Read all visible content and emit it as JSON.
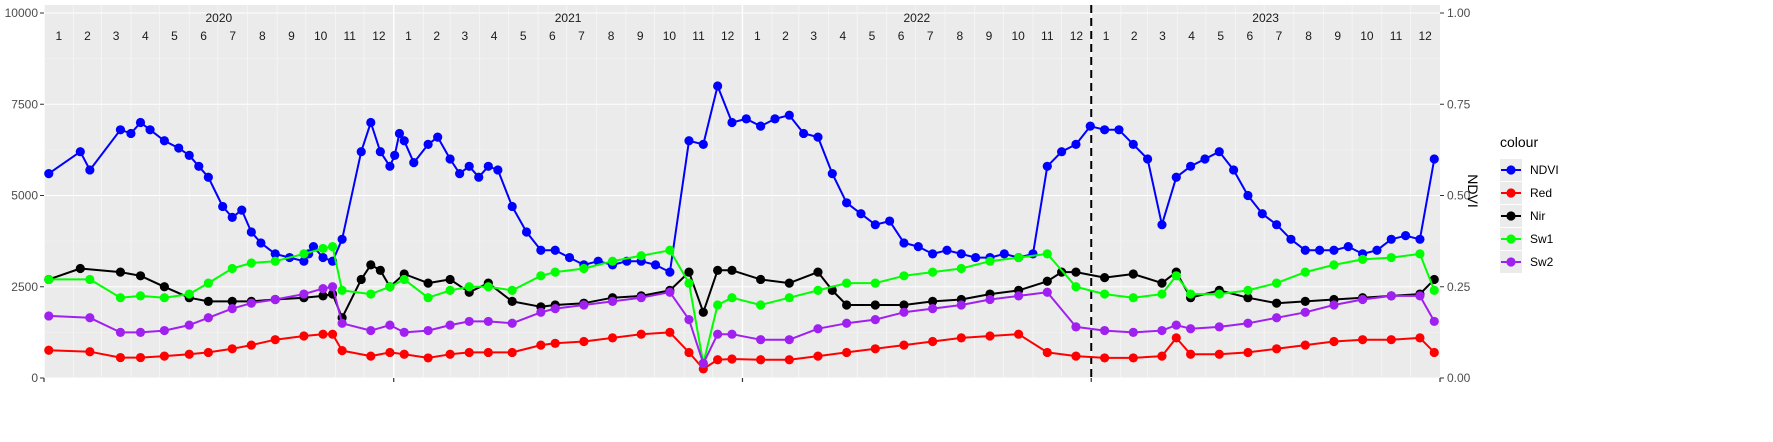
{
  "chart_data": {
    "type": "line",
    "title": "",
    "xlabel": "",
    "ylabel_left": "",
    "ylabel_right": "NDVI",
    "ylim_left": [
      0,
      10000
    ],
    "ylim_right": [
      0,
      1
    ],
    "yticks_left": [
      "0",
      "2500",
      "5000",
      "7500",
      "10000"
    ],
    "yticks_right": [
      "0.00",
      "0.25",
      "0.50",
      "0.75",
      "1.00"
    ],
    "years": [
      "2020",
      "2021",
      "2022",
      "2023"
    ],
    "months": [
      "1",
      "2",
      "3",
      "4",
      "5",
      "6",
      "7",
      "8",
      "9",
      "10",
      "11",
      "12"
    ],
    "x_range": [
      "2020-01-01",
      "2023-12-31"
    ],
    "vline_date": "2023-01-01",
    "grid": true,
    "legend_title": "colour",
    "legend_position": "right",
    "series": [
      {
        "name": "NDVI",
        "axis": "right",
        "color": "#0000ff",
        "dates": [
          "2020-01-06",
          "2020-02-08",
          "2020-02-18",
          "2020-03-21",
          "2020-04-01",
          "2020-04-11",
          "2020-04-21",
          "2020-05-06",
          "2020-05-21",
          "2020-06-01",
          "2020-06-11",
          "2020-06-21",
          "2020-07-06",
          "2020-07-16",
          "2020-07-26",
          "2020-08-05",
          "2020-08-15",
          "2020-08-30",
          "2020-09-14",
          "2020-09-29",
          "2020-10-04",
          "2020-10-09",
          "2020-10-19",
          "2020-10-29",
          "2020-11-08",
          "2020-11-28",
          "2020-12-08",
          "2020-12-18",
          "2020-12-28",
          "2021-01-02",
          "2021-01-07",
          "2021-01-12",
          "2021-01-22",
          "2021-02-06",
          "2021-02-16",
          "2021-03-01",
          "2021-03-11",
          "2021-03-21",
          "2021-03-31",
          "2021-04-10",
          "2021-04-20",
          "2021-05-05",
          "2021-05-20",
          "2021-06-04",
          "2021-06-19",
          "2021-07-04",
          "2021-07-19",
          "2021-08-03",
          "2021-08-18",
          "2021-09-02",
          "2021-09-17",
          "2021-10-02",
          "2021-10-17",
          "2021-11-06",
          "2021-11-21",
          "2021-12-06",
          "2021-12-21",
          "2022-01-05",
          "2022-01-20",
          "2022-02-04",
          "2022-02-19",
          "2022-03-06",
          "2022-03-21",
          "2022-04-05",
          "2022-04-20",
          "2022-05-05",
          "2022-05-20",
          "2022-06-04",
          "2022-06-19",
          "2022-07-04",
          "2022-07-19",
          "2022-08-03",
          "2022-08-18",
          "2022-09-02",
          "2022-09-17",
          "2022-10-02",
          "2022-10-17",
          "2022-11-01",
          "2022-11-16",
          "2022-12-01",
          "2022-12-16",
          "2022-12-31",
          "2023-01-15",
          "2023-01-30",
          "2023-02-14",
          "2023-03-01",
          "2023-03-16",
          "2023-03-31",
          "2023-04-15",
          "2023-04-30",
          "2023-05-15",
          "2023-05-30",
          "2023-06-14",
          "2023-06-29",
          "2023-07-14",
          "2023-07-29",
          "2023-08-13",
          "2023-08-28",
          "2023-09-12",
          "2023-09-27",
          "2023-10-12",
          "2023-10-27",
          "2023-11-11",
          "2023-11-26",
          "2023-12-11",
          "2023-12-26"
        ],
        "values": [
          0.56,
          0.62,
          0.57,
          0.68,
          0.67,
          0.7,
          0.68,
          0.65,
          0.63,
          0.61,
          0.58,
          0.55,
          0.47,
          0.44,
          0.46,
          0.4,
          0.37,
          0.34,
          0.33,
          0.32,
          0.34,
          0.36,
          0.33,
          0.32,
          0.38,
          0.62,
          0.7,
          0.62,
          0.58,
          0.61,
          0.67,
          0.65,
          0.59,
          0.64,
          0.66,
          0.6,
          0.56,
          0.58,
          0.55,
          0.58,
          0.57,
          0.47,
          0.4,
          0.35,
          0.35,
          0.33,
          0.31,
          0.32,
          0.31,
          0.32,
          0.32,
          0.31,
          0.29,
          0.65,
          0.64,
          0.8,
          0.7,
          0.71,
          0.69,
          0.71,
          0.72,
          0.67,
          0.66,
          0.56,
          0.48,
          0.45,
          0.42,
          0.43,
          0.37,
          0.36,
          0.34,
          0.35,
          0.34,
          0.33,
          0.33,
          0.34,
          0.33,
          0.34,
          0.58,
          0.62,
          0.64,
          0.69,
          0.68,
          0.68,
          0.64,
          0.6,
          0.42,
          0.55,
          0.58,
          0.6,
          0.62,
          0.57,
          0.5,
          0.45,
          0.42,
          0.38,
          0.35,
          0.35,
          0.35,
          0.36,
          0.34,
          0.35,
          0.38,
          0.39,
          0.38,
          0.6
        ]
      },
      {
        "name": "Red",
        "axis": "left",
        "color": "#ff0000",
        "dates": [
          "2020-01-06",
          "2020-02-18",
          "2020-03-21",
          "2020-04-11",
          "2020-05-06",
          "2020-06-01",
          "2020-06-21",
          "2020-07-16",
          "2020-08-05",
          "2020-08-30",
          "2020-09-29",
          "2020-10-19",
          "2020-10-29",
          "2020-11-08",
          "2020-12-08",
          "2020-12-28",
          "2021-01-12",
          "2021-02-06",
          "2021-03-01",
          "2021-03-21",
          "2021-04-10",
          "2021-05-05",
          "2021-06-04",
          "2021-06-19",
          "2021-07-19",
          "2021-08-18",
          "2021-09-17",
          "2021-10-17",
          "2021-11-06",
          "2021-11-21",
          "2021-12-06",
          "2021-12-21",
          "2022-01-20",
          "2022-02-19",
          "2022-03-21",
          "2022-04-20",
          "2022-05-20",
          "2022-06-19",
          "2022-07-19",
          "2022-08-18",
          "2022-09-17",
          "2022-10-17",
          "2022-11-16",
          "2022-12-16",
          "2023-01-15",
          "2023-02-14",
          "2023-03-16",
          "2023-03-31",
          "2023-04-15",
          "2023-05-15",
          "2023-06-14",
          "2023-07-14",
          "2023-08-13",
          "2023-09-12",
          "2023-10-12",
          "2023-11-11",
          "2023-12-11",
          "2023-12-26"
        ],
        "values": [
          760,
          720,
          560,
          560,
          600,
          650,
          700,
          800,
          900,
          1050,
          1150,
          1200,
          1200,
          750,
          600,
          700,
          650,
          550,
          650,
          700,
          700,
          700,
          900,
          950,
          1000,
          1100,
          1200,
          1250,
          700,
          250,
          500,
          520,
          500,
          500,
          600,
          700,
          800,
          900,
          1000,
          1100,
          1150,
          1200,
          700,
          600,
          550,
          550,
          600,
          1100,
          650,
          650,
          700,
          800,
          900,
          1000,
          1050,
          1050,
          1100,
          700
        ]
      },
      {
        "name": "Nir",
        "axis": "left",
        "color": "#000000",
        "dates": [
          "2020-01-06",
          "2020-02-08",
          "2020-03-21",
          "2020-04-11",
          "2020-05-06",
          "2020-06-01",
          "2020-06-21",
          "2020-07-16",
          "2020-08-05",
          "2020-08-30",
          "2020-09-29",
          "2020-10-19",
          "2020-10-29",
          "2020-11-08",
          "2020-11-28",
          "2020-12-08",
          "2020-12-18",
          "2020-12-28",
          "2021-01-12",
          "2021-02-06",
          "2021-03-01",
          "2021-03-21",
          "2021-04-10",
          "2021-05-05",
          "2021-06-04",
          "2021-06-19",
          "2021-07-19",
          "2021-08-18",
          "2021-09-17",
          "2021-10-17",
          "2021-11-06",
          "2021-11-21",
          "2021-12-06",
          "2021-12-21",
          "2022-01-20",
          "2022-02-19",
          "2022-03-21",
          "2022-04-05",
          "2022-04-20",
          "2022-05-20",
          "2022-06-19",
          "2022-07-19",
          "2022-08-18",
          "2022-09-17",
          "2022-10-17",
          "2022-11-16",
          "2022-12-01",
          "2022-12-16",
          "2023-01-15",
          "2023-02-14",
          "2023-03-16",
          "2023-03-31",
          "2023-04-15",
          "2023-05-15",
          "2023-06-14",
          "2023-07-14",
          "2023-08-13",
          "2023-09-12",
          "2023-10-12",
          "2023-11-11",
          "2023-12-11",
          "2023-12-26"
        ],
        "values": [
          2700,
          3000,
          2900,
          2800,
          2500,
          2200,
          2100,
          2100,
          2100,
          2150,
          2200,
          2250,
          2300,
          1650,
          2700,
          3100,
          2950,
          2500,
          2850,
          2600,
          2700,
          2350,
          2600,
          2100,
          1950,
          2000,
          2050,
          2200,
          2250,
          2400,
          2900,
          1800,
          2950,
          2950,
          2700,
          2600,
          2900,
          2400,
          2000,
          2000,
          2000,
          2100,
          2150,
          2300,
          2400,
          2650,
          2900,
          2900,
          2750,
          2850,
          2600,
          2900,
          2200,
          2400,
          2200,
          2050,
          2100,
          2150,
          2200,
          2250,
          2300,
          2700
        ]
      },
      {
        "name": "Sw1",
        "axis": "left",
        "color": "#00ff00",
        "dates": [
          "2020-01-06",
          "2020-02-18",
          "2020-03-21",
          "2020-04-11",
          "2020-05-06",
          "2020-06-01",
          "2020-06-21",
          "2020-07-16",
          "2020-08-05",
          "2020-08-30",
          "2020-09-29",
          "2020-10-19",
          "2020-10-29",
          "2020-11-08",
          "2020-12-08",
          "2020-12-28",
          "2021-01-12",
          "2021-02-06",
          "2021-03-01",
          "2021-03-21",
          "2021-04-10",
          "2021-05-05",
          "2021-06-04",
          "2021-06-19",
          "2021-07-19",
          "2021-08-18",
          "2021-09-17",
          "2021-10-17",
          "2021-11-06",
          "2021-11-21",
          "2021-12-06",
          "2021-12-21",
          "2022-01-20",
          "2022-02-19",
          "2022-03-21",
          "2022-04-20",
          "2022-05-20",
          "2022-06-19",
          "2022-07-19",
          "2022-08-18",
          "2022-09-17",
          "2022-10-17",
          "2022-11-16",
          "2022-12-16",
          "2023-01-15",
          "2023-02-14",
          "2023-03-16",
          "2023-03-31",
          "2023-04-15",
          "2023-05-15",
          "2023-06-14",
          "2023-07-14",
          "2023-08-13",
          "2023-09-12",
          "2023-10-12",
          "2023-11-11",
          "2023-12-11",
          "2023-12-26"
        ],
        "values": [
          2700,
          2700,
          2200,
          2250,
          2200,
          2300,
          2600,
          3000,
          3150,
          3200,
          3400,
          3550,
          3600,
          2400,
          2300,
          2500,
          2700,
          2200,
          2400,
          2500,
          2500,
          2400,
          2800,
          2900,
          3000,
          3200,
          3350,
          3500,
          2600,
          400,
          2000,
          2200,
          2000,
          2200,
          2400,
          2600,
          2600,
          2800,
          2900,
          3000,
          3200,
          3300,
          3400,
          2500,
          2300,
          2200,
          2300,
          2800,
          2300,
          2300,
          2400,
          2600,
          2900,
          3100,
          3250,
          3300,
          3400,
          2400
        ]
      },
      {
        "name": "Sw2",
        "axis": "left",
        "color": "#a020f0",
        "dates": [
          "2020-01-06",
          "2020-02-18",
          "2020-03-21",
          "2020-04-11",
          "2020-05-06",
          "2020-06-01",
          "2020-06-21",
          "2020-07-16",
          "2020-08-05",
          "2020-08-30",
          "2020-09-29",
          "2020-10-19",
          "2020-10-29",
          "2020-11-08",
          "2020-12-08",
          "2020-12-28",
          "2021-01-12",
          "2021-02-06",
          "2021-03-01",
          "2021-03-21",
          "2021-04-10",
          "2021-05-05",
          "2021-06-04",
          "2021-06-19",
          "2021-07-19",
          "2021-08-18",
          "2021-09-17",
          "2021-10-17",
          "2021-11-06",
          "2021-11-21",
          "2021-12-06",
          "2021-12-21",
          "2022-01-20",
          "2022-02-19",
          "2022-03-21",
          "2022-04-20",
          "2022-05-20",
          "2022-06-19",
          "2022-07-19",
          "2022-08-18",
          "2022-09-17",
          "2022-10-17",
          "2022-11-16",
          "2022-12-16",
          "2023-01-15",
          "2023-02-14",
          "2023-03-16",
          "2023-03-31",
          "2023-04-15",
          "2023-05-15",
          "2023-06-14",
          "2023-07-14",
          "2023-08-13",
          "2023-09-12",
          "2023-10-12",
          "2023-11-11",
          "2023-12-11",
          "2023-12-26"
        ],
        "values": [
          1700,
          1650,
          1250,
          1250,
          1300,
          1450,
          1650,
          1900,
          2050,
          2150,
          2300,
          2450,
          2500,
          1500,
          1300,
          1450,
          1250,
          1300,
          1450,
          1550,
          1550,
          1500,
          1800,
          1900,
          2000,
          2100,
          2200,
          2350,
          1600,
          400,
          1200,
          1200,
          1050,
          1050,
          1350,
          1500,
          1600,
          1800,
          1900,
          2000,
          2150,
          2250,
          2350,
          1400,
          1300,
          1250,
          1300,
          1450,
          1350,
          1400,
          1500,
          1650,
          1800,
          2000,
          2150,
          2250,
          2250,
          1550
        ]
      }
    ]
  }
}
